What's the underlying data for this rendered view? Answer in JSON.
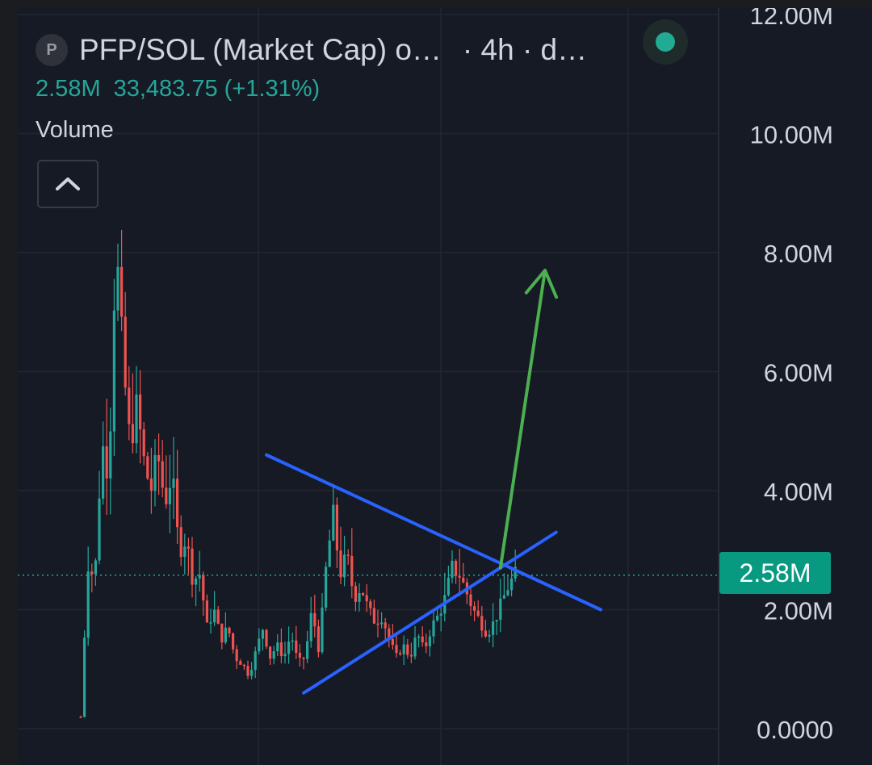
{
  "header": {
    "symbol_icon_letter": "P",
    "title": "PFP/SOL (Market Cap) o…",
    "interval_text": "· 4h · d…",
    "last_value": "2.58M",
    "change_text": "33,483.75 (+1.31%)",
    "indicator_label": "Volume",
    "live_status_color": "#22ab94"
  },
  "price_badge": {
    "label": "2.58M",
    "color": "#089981"
  },
  "colors": {
    "up": "#26a69a",
    "down": "#ef5350",
    "trendline": "#2962ff",
    "arrow": "#4caf50",
    "background": "#161a25"
  },
  "chart_data": {
    "type": "candlestick",
    "title": "PFP/SOL (Market Cap)",
    "interval": "4h",
    "y_axis": {
      "ticks": [
        "12.00M",
        "10.00M",
        "8.00M",
        "6.00M",
        "4.00M",
        "2.00M",
        "0.0000"
      ],
      "tick_values": [
        12000000,
        10000000,
        8000000,
        6000000,
        4000000,
        2000000,
        0
      ],
      "ylim": [
        0,
        12200000
      ],
      "side": "right"
    },
    "grid": true,
    "last_price": 2580000,
    "price_line_style": "dotted",
    "candles_approx_count": 118,
    "price_path_mln": [
      0.2,
      2.8,
      2.5,
      4.8,
      4.3,
      8.2,
      6.2,
      4.8,
      5.4,
      4.5,
      4.0,
      4.6,
      3.8,
      4.3,
      3.0,
      3.2,
      2.5,
      2.6,
      1.7,
      2.0,
      1.5,
      1.7,
      1.2,
      1.1,
      0.9,
      1.3,
      1.7,
      1.2,
      1.4,
      1.2,
      1.6,
      1.1,
      1.2,
      2.0,
      1.3,
      2.7,
      3.6,
      2.6,
      2.9,
      2.2,
      2.4,
      2.0,
      1.8,
      1.9,
      1.5,
      1.2,
      1.4,
      1.2,
      1.6,
      1.3,
      1.7,
      1.9,
      2.2,
      2.7,
      2.6,
      2.3,
      2.0,
      1.8,
      1.6,
      1.8,
      2.1,
      2.4,
      2.58
    ],
    "annotations": [
      {
        "type": "trendline",
        "name": "descending-resistance",
        "from": {
          "bar": 50,
          "value": 4.6
        },
        "to": {
          "bar": 140,
          "value": 2.0
        },
        "color": "#2962ff"
      },
      {
        "type": "trendline",
        "name": "ascending-support",
        "from": {
          "bar": 60,
          "value": 0.6
        },
        "to": {
          "bar": 128,
          "value": 3.3
        },
        "color": "#2962ff"
      },
      {
        "type": "arrow",
        "name": "breakout-arrow",
        "from": {
          "bar": 113,
          "value": 2.7
        },
        "to": {
          "bar": 125,
          "value": 7.7
        },
        "color": "#4caf50"
      }
    ]
  }
}
